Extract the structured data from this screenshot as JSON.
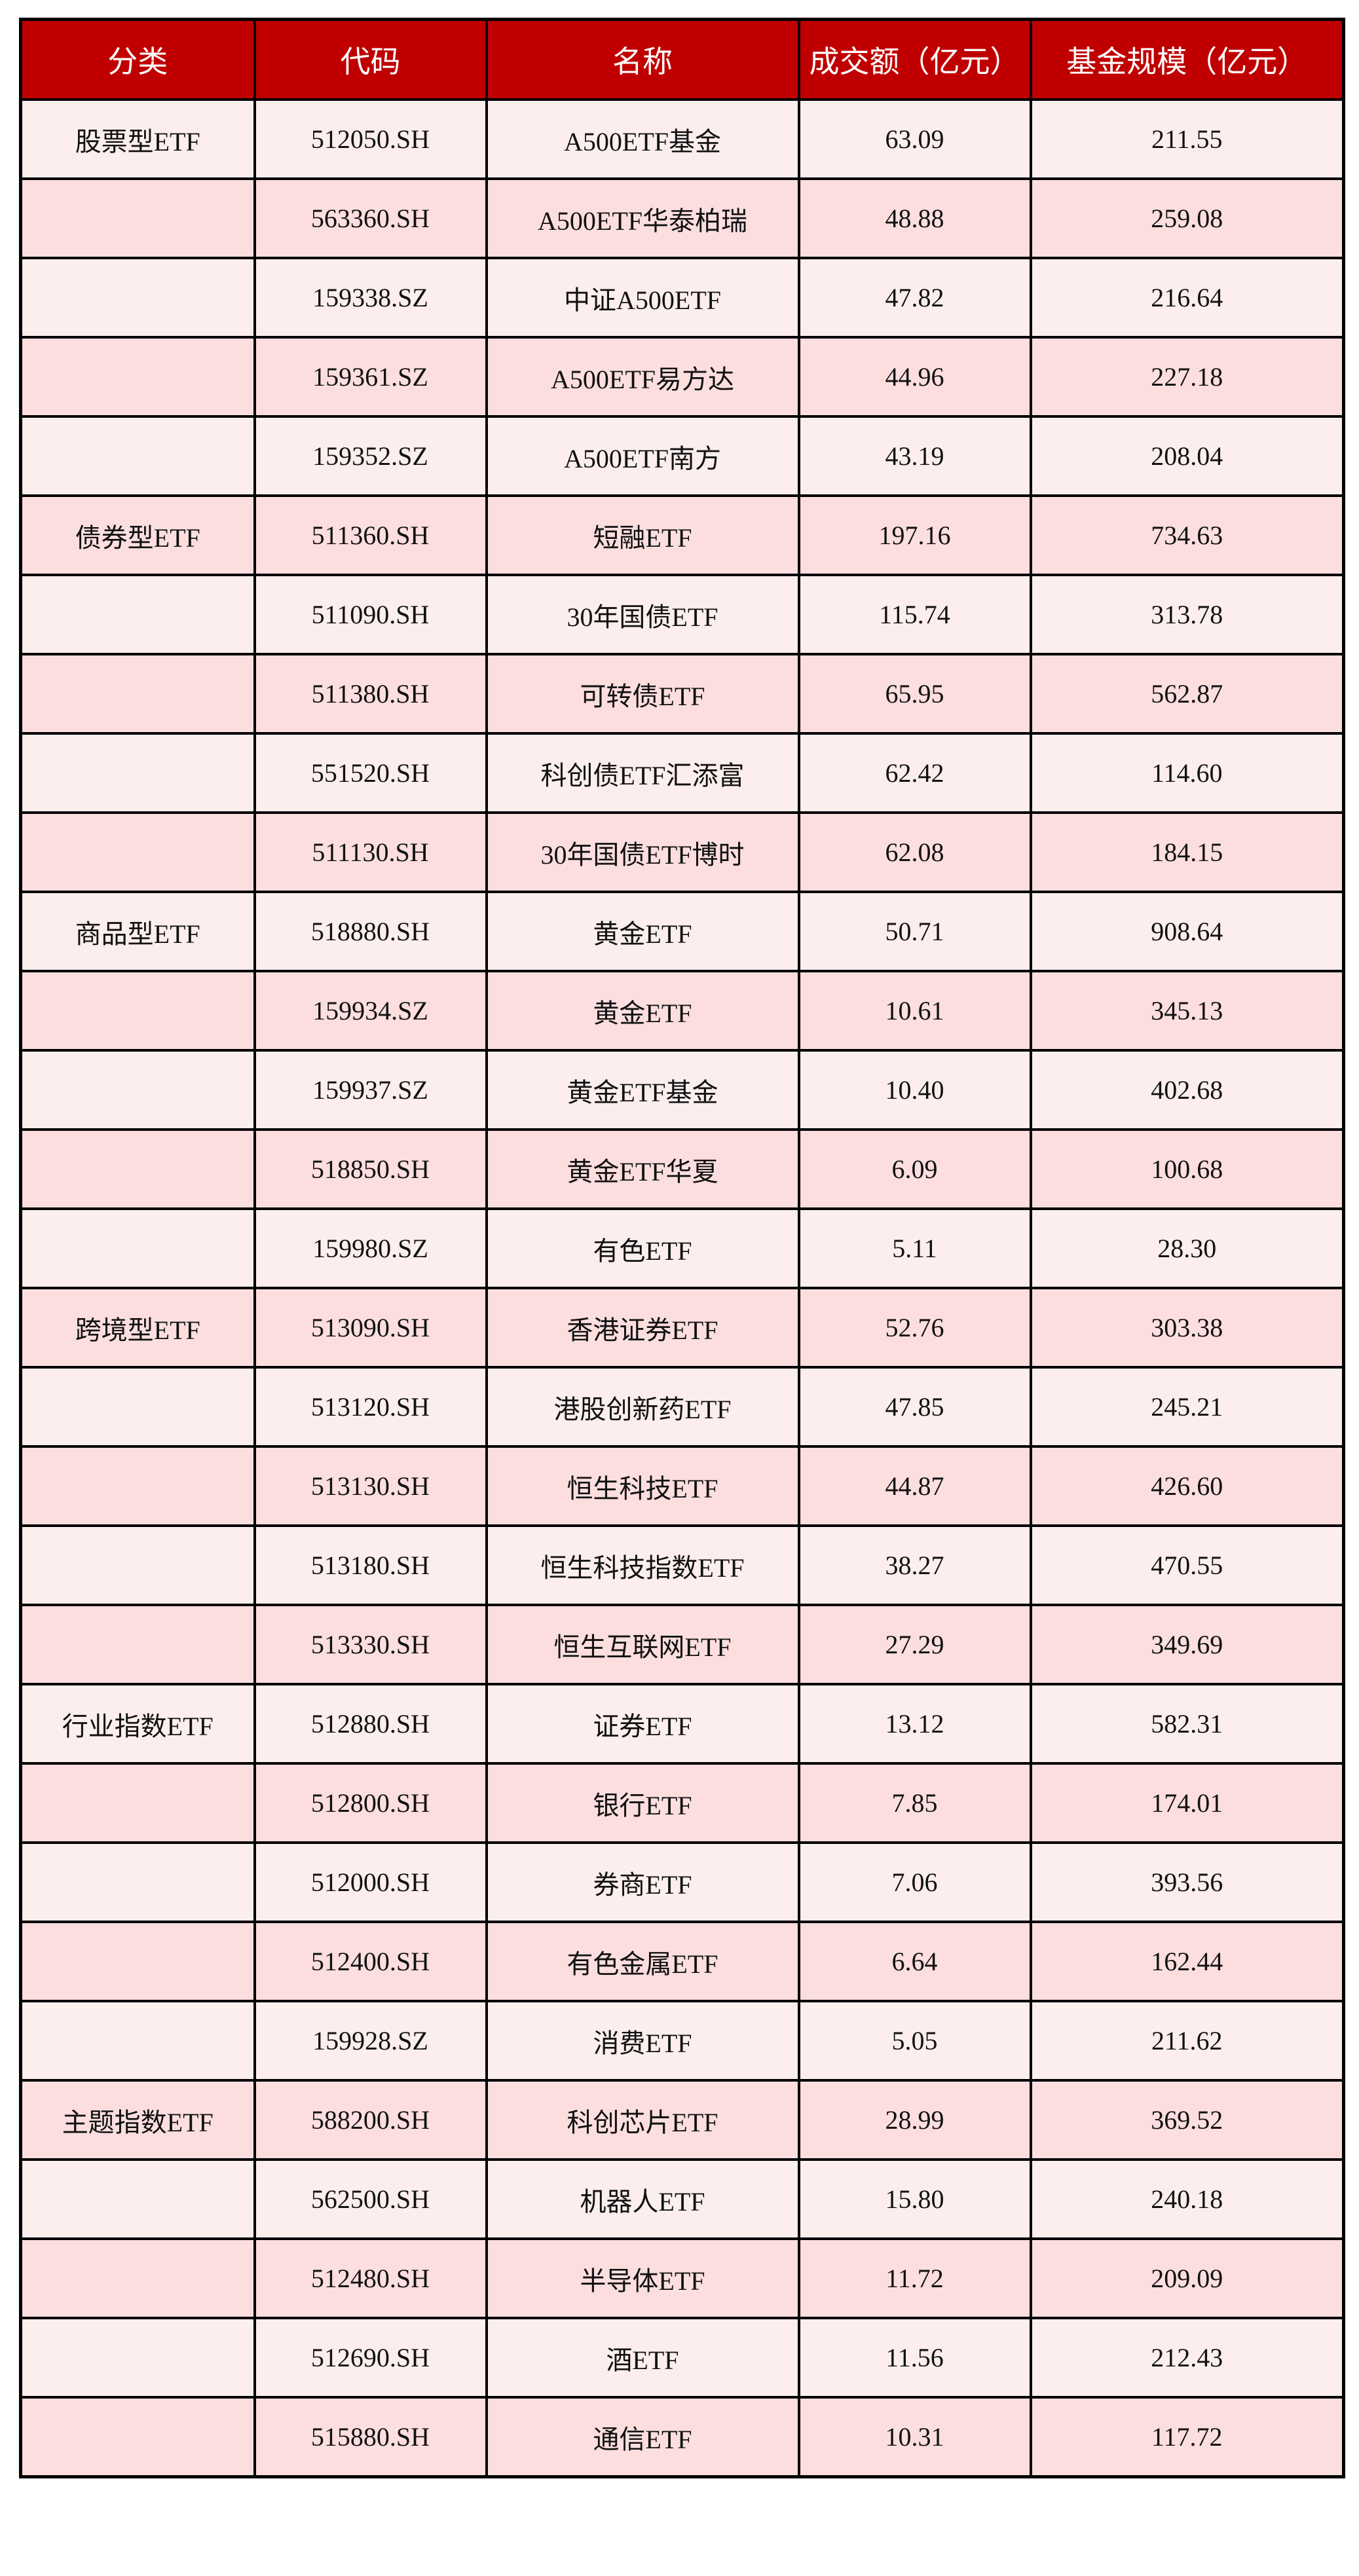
{
  "table": {
    "columns": [
      "分类",
      "代码",
      "名称",
      "成交额（亿元）",
      "基金规模（亿元）"
    ],
    "rows": [
      [
        "股票型ETF",
        "512050.SH",
        "A500ETF基金",
        "63.09",
        "211.55"
      ],
      [
        "",
        "563360.SH",
        "A500ETF华泰柏瑞",
        "48.88",
        "259.08"
      ],
      [
        "",
        "159338.SZ",
        "中证A500ETF",
        "47.82",
        "216.64"
      ],
      [
        "",
        "159361.SZ",
        "A500ETF易方达",
        "44.96",
        "227.18"
      ],
      [
        "",
        "159352.SZ",
        "A500ETF南方",
        "43.19",
        "208.04"
      ],
      [
        "债券型ETF",
        "511360.SH",
        "短融ETF",
        "197.16",
        "734.63"
      ],
      [
        "",
        "511090.SH",
        "30年国债ETF",
        "115.74",
        "313.78"
      ],
      [
        "",
        "511380.SH",
        "可转债ETF",
        "65.95",
        "562.87"
      ],
      [
        "",
        "551520.SH",
        "科创债ETF汇添富",
        "62.42",
        "114.60"
      ],
      [
        "",
        "511130.SH",
        "30年国债ETF博时",
        "62.08",
        "184.15"
      ],
      [
        "商品型ETF",
        "518880.SH",
        "黄金ETF",
        "50.71",
        "908.64"
      ],
      [
        "",
        "159934.SZ",
        "黄金ETF",
        "10.61",
        "345.13"
      ],
      [
        "",
        "159937.SZ",
        "黄金ETF基金",
        "10.40",
        "402.68"
      ],
      [
        "",
        "518850.SH",
        "黄金ETF华夏",
        "6.09",
        "100.68"
      ],
      [
        "",
        "159980.SZ",
        "有色ETF",
        "5.11",
        "28.30"
      ],
      [
        "跨境型ETF",
        "513090.SH",
        "香港证券ETF",
        "52.76",
        "303.38"
      ],
      [
        "",
        "513120.SH",
        "港股创新药ETF",
        "47.85",
        "245.21"
      ],
      [
        "",
        "513130.SH",
        "恒生科技ETF",
        "44.87",
        "426.60"
      ],
      [
        "",
        "513180.SH",
        "恒生科技指数ETF",
        "38.27",
        "470.55"
      ],
      [
        "",
        "513330.SH",
        "恒生互联网ETF",
        "27.29",
        "349.69"
      ],
      [
        "行业指数ETF",
        "512880.SH",
        "证券ETF",
        "13.12",
        "582.31"
      ],
      [
        "",
        "512800.SH",
        "银行ETF",
        "7.85",
        "174.01"
      ],
      [
        "",
        "512000.SH",
        "券商ETF",
        "7.06",
        "393.56"
      ],
      [
        "",
        "512400.SH",
        "有色金属ETF",
        "6.64",
        "162.44"
      ],
      [
        "",
        "159928.SZ",
        "消费ETF",
        "5.05",
        "211.62"
      ],
      [
        "主题指数ETF",
        "588200.SH",
        "科创芯片ETF",
        "28.99",
        "369.52"
      ],
      [
        "",
        "562500.SH",
        "机器人ETF",
        "15.80",
        "240.18"
      ],
      [
        "",
        "512480.SH",
        "半导体ETF",
        "11.72",
        "209.09"
      ],
      [
        "",
        "512690.SH",
        "酒ETF",
        "11.56",
        "212.43"
      ],
      [
        "",
        "515880.SH",
        "通信ETF",
        "10.31",
        "117.72"
      ]
    ]
  },
  "colors": {
    "header_bg": "#C00000",
    "row_odd": "#FDEEEE",
    "row_even": "#FCDEDF"
  }
}
